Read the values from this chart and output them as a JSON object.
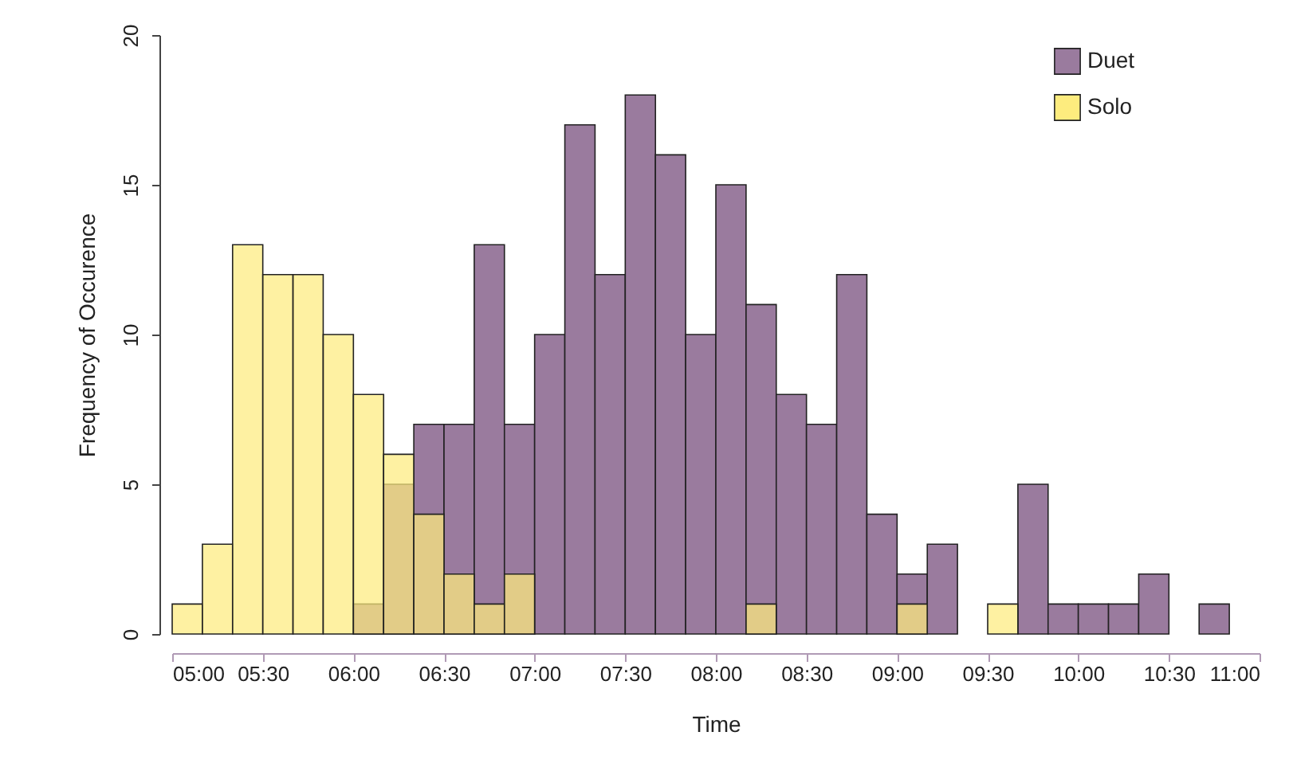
{
  "chart_data": {
    "type": "histogram",
    "xlabel": "Time",
    "ylabel": "Frequency of Occurence",
    "bins": [
      5,
      5.1667,
      5.3333,
      5.5,
      5.6667,
      5.8333,
      6,
      6.1667,
      6.3333,
      6.5,
      6.6667,
      6.8333,
      7,
      7.1667,
      7.3333,
      7.5,
      7.6667,
      7.8333,
      8,
      8.1667,
      8.3333,
      8.5,
      8.6667,
      8.8333,
      9,
      9.1667,
      9.3333,
      9.5,
      9.6667,
      9.8333,
      10,
      10.1667,
      10.3333,
      10.5,
      10.6667,
      10.8333
    ],
    "series": [
      {
        "name": "Duet",
        "color": "#9a7b9e",
        "values": [
          0,
          0,
          0,
          0,
          0,
          0,
          1,
          5,
          7,
          7,
          13,
          7,
          10,
          17,
          12,
          18,
          16,
          10,
          15,
          11,
          8,
          7,
          12,
          4,
          2,
          3,
          0,
          0,
          5,
          1,
          1,
          1,
          2,
          0,
          1
        ]
      },
      {
        "name": "Solo",
        "color": "#fdec7e",
        "values": [
          1,
          3,
          13,
          12,
          12,
          10,
          8,
          6,
          4,
          2,
          1,
          2,
          0,
          0,
          0,
          0,
          0,
          0,
          0,
          1,
          0,
          0,
          0,
          0,
          1,
          0,
          0,
          1,
          0,
          0,
          0,
          0,
          0,
          0,
          0
        ]
      }
    ],
    "xlim": [
      5,
      11
    ],
    "ylim": [
      0,
      20
    ],
    "xticks": [
      {
        "value": 5,
        "label": "05:00"
      },
      {
        "value": 5.5,
        "label": "05:30"
      },
      {
        "value": 6,
        "label": "06:00"
      },
      {
        "value": 6.5,
        "label": "06:30"
      },
      {
        "value": 7,
        "label": "07:00"
      },
      {
        "value": 7.5,
        "label": "07:30"
      },
      {
        "value": 8,
        "label": "08:00"
      },
      {
        "value": 8.5,
        "label": "08:30"
      },
      {
        "value": 9,
        "label": "09:00"
      },
      {
        "value": 9.5,
        "label": "09:30"
      },
      {
        "value": 10,
        "label": "10:00"
      },
      {
        "value": 10.5,
        "label": "10:30"
      },
      {
        "value": 11,
        "label": "11:00"
      }
    ],
    "yticks": [
      0,
      5,
      10,
      15,
      20
    ],
    "grid": false,
    "legend": "top right"
  }
}
